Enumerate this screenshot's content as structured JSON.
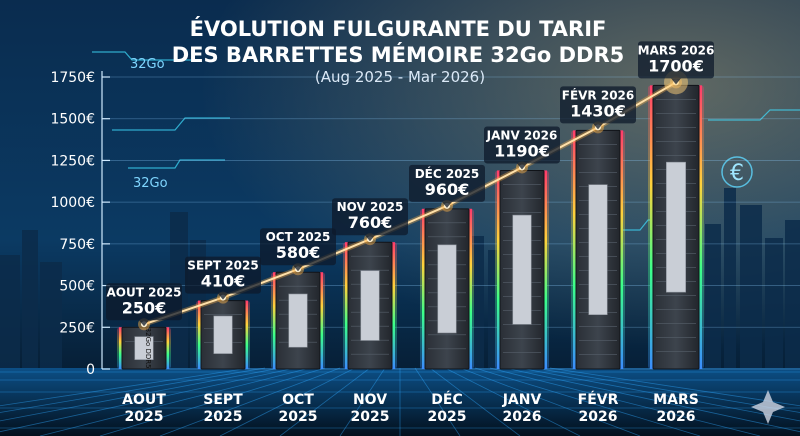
{
  "title_lines": [
    "ÉVOLUTION FULGURANTE DU TARIF",
    "DES BARRETTES MÉMOIRE 32Go DDR5"
  ],
  "subtitle": "(Aug 2025 - Mar 2026)",
  "decor": {
    "tag": "32Go",
    "euro_symbol": "€",
    "stick_label": "32Go DDR5"
  },
  "colors": {
    "background": "#061426",
    "line": "#ffb347",
    "accent": "#35d2ff"
  },
  "chart_data": {
    "type": "bar",
    "title": "ÉVOLUTION FULGURANTE DU TARIF DES BARRETTES MÉMOIRE 32Go DDR5",
    "subtitle": "(Aug 2025 - Mar 2026)",
    "xlabel": "",
    "ylabel": "",
    "ylim": [
      0,
      1750
    ],
    "yticks": [
      "0",
      "250€",
      "500€",
      "750€",
      "1000€",
      "1250€",
      "1500€",
      "1750€"
    ],
    "categories": [
      "AOUT 2025",
      "SEPT 2025",
      "OCT 2025",
      "NOV 2025",
      "DÉC 2025",
      "JANV 2026",
      "FÉVR 2026",
      "MARS 2026"
    ],
    "x_tick_lines": [
      [
        "AOUT",
        "2025"
      ],
      [
        "SEPT",
        "2025"
      ],
      [
        "OCT",
        "2025"
      ],
      [
        "NOV",
        "2025"
      ],
      [
        "DÉC",
        "2025"
      ],
      [
        "JANV",
        "2026"
      ],
      [
        "FÉVR",
        "2026"
      ],
      [
        "MARS",
        "2026"
      ]
    ],
    "values": [
      250,
      410,
      580,
      760,
      960,
      1190,
      1430,
      1700
    ],
    "data_labels": [
      "250€",
      "410€",
      "580€",
      "760€",
      "960€",
      "1190€",
      "1430€",
      "1700€"
    ],
    "grid": true,
    "overlay": "line"
  }
}
